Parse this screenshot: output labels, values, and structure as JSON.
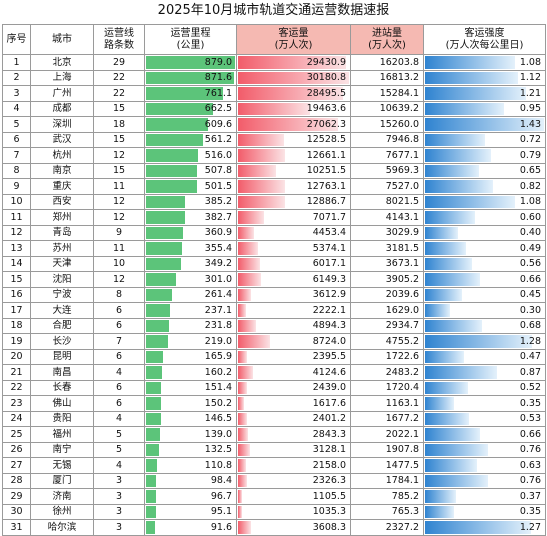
{
  "title": "2025年10月城市轨道交通运营数据速报",
  "headers": {
    "rank": "序号",
    "city": "城市",
    "lines": [
      "运营线",
      "路条数"
    ],
    "mileage": [
      "运营里程",
      "(公里)"
    ],
    "passengers": [
      "客运量",
      "(万人次)"
    ],
    "inbound": [
      "进站量",
      "(万人次)"
    ],
    "intensity": [
      "客运强度",
      "(万人次每公里日)"
    ]
  },
  "chart_data": {
    "type": "table",
    "title": "2025年10月城市轨道交通运营数据速报",
    "columns": [
      "序号",
      "城市",
      "运营线路条数",
      "运营里程(公里)",
      "客运量(万人次)",
      "进站量(万人次)",
      "客运强度(万人次每公里日)"
    ],
    "rows": [
      [
        1,
        "北京",
        29,
        "879.0",
        "29430.9",
        "16203.8",
        "1.08"
      ],
      [
        2,
        "上海",
        22,
        "871.6",
        "30180.8",
        "16813.2",
        "1.12"
      ],
      [
        3,
        "广州",
        22,
        "761.1",
        "28495.5",
        "15284.1",
        "1.21"
      ],
      [
        4,
        "成都",
        15,
        "662.5",
        "19463.6",
        "10639.2",
        "0.95"
      ],
      [
        5,
        "深圳",
        18,
        "609.6",
        "27062.3",
        "15260.0",
        "1.43"
      ],
      [
        6,
        "武汉",
        15,
        "561.2",
        "12528.5",
        "7946.8",
        "0.72"
      ],
      [
        7,
        "杭州",
        12,
        "516.0",
        "12661.1",
        "7677.1",
        "0.79"
      ],
      [
        8,
        "南京",
        15,
        "507.8",
        "10251.5",
        "5969.3",
        "0.65"
      ],
      [
        9,
        "重庆",
        11,
        "501.5",
        "12763.1",
        "7527.0",
        "0.82"
      ],
      [
        10,
        "西安",
        12,
        "385.2",
        "12886.7",
        "8021.5",
        "1.08"
      ],
      [
        11,
        "郑州",
        12,
        "382.7",
        "7071.7",
        "4143.1",
        "0.60"
      ],
      [
        12,
        "青岛",
        9,
        "360.9",
        "4453.4",
        "3029.9",
        "0.40"
      ],
      [
        13,
        "苏州",
        11,
        "355.4",
        "5374.1",
        "3181.5",
        "0.49"
      ],
      [
        14,
        "天津",
        10,
        "349.2",
        "6017.1",
        "3673.1",
        "0.56"
      ],
      [
        15,
        "沈阳",
        12,
        "301.0",
        "6149.3",
        "3905.2",
        "0.66"
      ],
      [
        16,
        "宁波",
        8,
        "261.4",
        "3612.9",
        "2039.6",
        "0.45"
      ],
      [
        17,
        "大连",
        6,
        "237.1",
        "2222.1",
        "1629.0",
        "0.30"
      ],
      [
        18,
        "合肥",
        6,
        "231.8",
        "4894.3",
        "2934.7",
        "0.68"
      ],
      [
        19,
        "长沙",
        7,
        "219.0",
        "8724.0",
        "4755.2",
        "1.28"
      ],
      [
        20,
        "昆明",
        6,
        "165.9",
        "2395.5",
        "1722.6",
        "0.47"
      ],
      [
        21,
        "南昌",
        4,
        "160.2",
        "4124.6",
        "2483.2",
        "0.87"
      ],
      [
        22,
        "长春",
        6,
        "151.4",
        "2439.0",
        "1720.4",
        "0.52"
      ],
      [
        23,
        "佛山",
        6,
        "150.2",
        "1617.6",
        "1163.1",
        "0.35"
      ],
      [
        24,
        "贵阳",
        4,
        "146.5",
        "2401.2",
        "1677.2",
        "0.53"
      ],
      [
        25,
        "福州",
        5,
        "139.0",
        "2843.3",
        "2022.1",
        "0.66"
      ],
      [
        26,
        "南宁",
        5,
        "132.5",
        "3128.1",
        "1907.8",
        "0.76"
      ],
      [
        27,
        "无锡",
        4,
        "110.8",
        "2158.0",
        "1477.5",
        "0.63"
      ],
      [
        28,
        "厦门",
        3,
        "98.4",
        "2326.3",
        "1784.1",
        "0.76"
      ],
      [
        29,
        "济南",
        3,
        "96.7",
        "1105.5",
        "785.2",
        "0.37"
      ],
      [
        30,
        "徐州",
        3,
        "95.1",
        "1035.3",
        "765.3",
        "0.35"
      ],
      [
        31,
        "哈尔滨",
        3,
        "91.6",
        "3608.3",
        "2327.2",
        "1.27"
      ]
    ]
  }
}
